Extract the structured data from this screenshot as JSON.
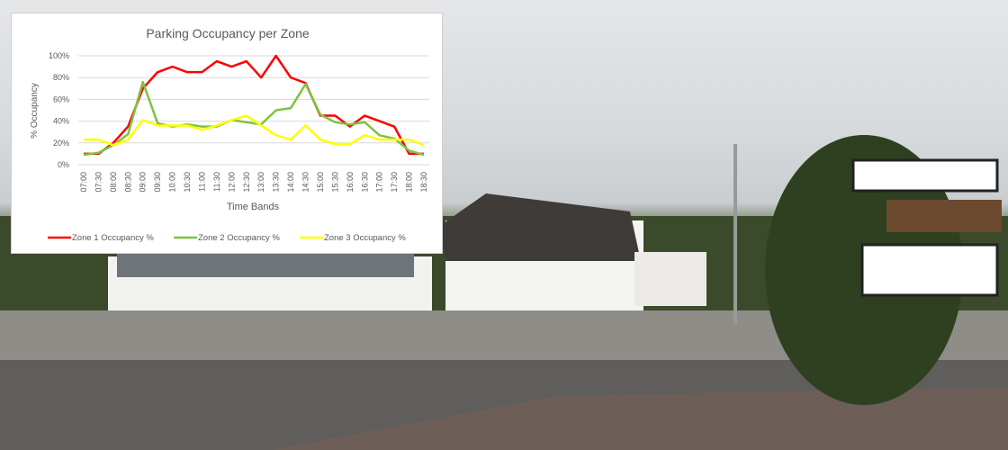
{
  "chart_data": {
    "type": "line",
    "title": "Parking Occupancy per Zone",
    "xlabel": "Time Bands",
    "ylabel": "% Occupancy",
    "ylim": [
      0,
      100
    ],
    "yticks": [
      "0%",
      "20%",
      "40%",
      "60%",
      "80%",
      "100%"
    ],
    "grid": true,
    "legend": "bottom",
    "categories": [
      "07:00",
      "07:30",
      "08:00",
      "08:30",
      "09:00",
      "09:30",
      "10:00",
      "10:30",
      "11:00",
      "11:30",
      "12:00",
      "12:30",
      "13:00",
      "13:30",
      "14:00",
      "14:30",
      "15:00",
      "15:30",
      "16:00",
      "16:30",
      "17:00",
      "17:30",
      "18:00",
      "18:30"
    ],
    "series": [
      {
        "name": "Zone 1 Occupancy %",
        "color": "#ff0000",
        "values": [
          10,
          10,
          20,
          35,
          70,
          85,
          90,
          85,
          85,
          95,
          90,
          95,
          80,
          100,
          80,
          75,
          45,
          45,
          35,
          45,
          40,
          35,
          10,
          10
        ]
      },
      {
        "name": "Zone 2 Occupancy %",
        "color": "#7fc241",
        "values": [
          9,
          11,
          18,
          28,
          76,
          38,
          35,
          37,
          35,
          35,
          41,
          39,
          37,
          50,
          52,
          74,
          46,
          39,
          37,
          39,
          27,
          24,
          13,
          9
        ]
      },
      {
        "name": "Zone 3 Occupancy %",
        "color": "#ffff00",
        "values": [
          23,
          23,
          18,
          23,
          41,
          36,
          36,
          36,
          32,
          36,
          41,
          45,
          36,
          27,
          23,
          36,
          23,
          19,
          19,
          27,
          23,
          23,
          23,
          18
        ]
      }
    ]
  }
}
